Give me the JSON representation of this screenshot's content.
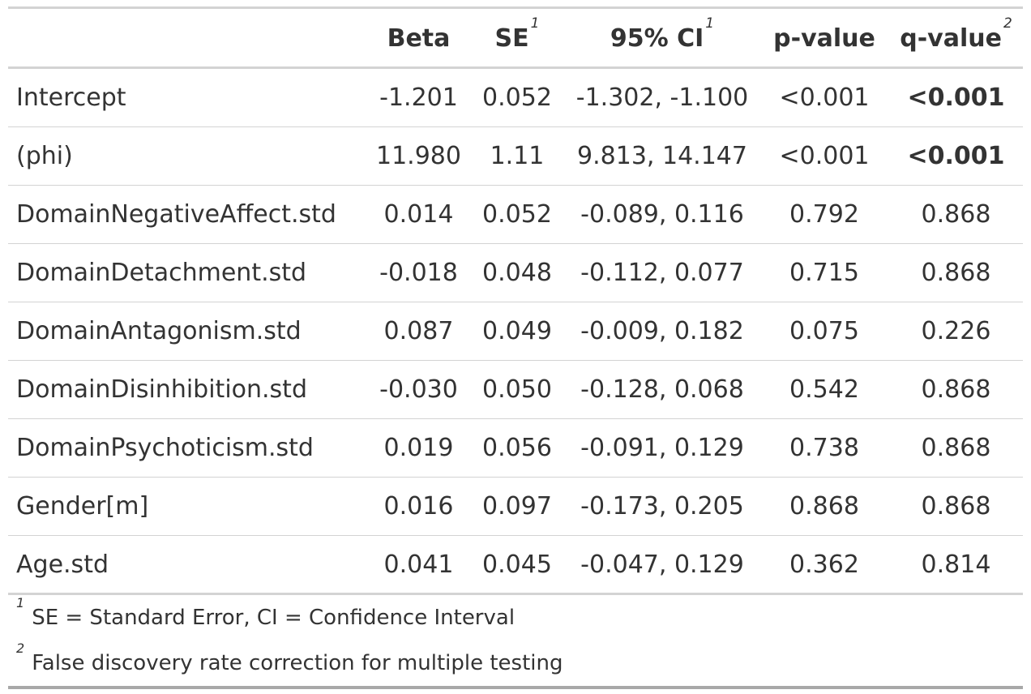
{
  "table": {
    "headers": [
      {
        "label": "",
        "sup": ""
      },
      {
        "label": "Beta",
        "sup": ""
      },
      {
        "label": "SE",
        "sup": "1"
      },
      {
        "label": "95% CI",
        "sup": "1"
      },
      {
        "label": "p-value",
        "sup": ""
      },
      {
        "label": "q-value",
        "sup": "2"
      }
    ],
    "rows": [
      {
        "term": "Intercept",
        "beta": "-1.201",
        "se": "0.052",
        "ci": "-1.302, -1.100",
        "p": "<0.001",
        "q": "<0.001",
        "q_bold": true
      },
      {
        "term": "(phi)",
        "beta": "11.980",
        "se": "1.11",
        "ci": "9.813, 14.147",
        "p": "<0.001",
        "q": "<0.001",
        "q_bold": true
      },
      {
        "term": "DomainNegativeAffect.std",
        "beta": "0.014",
        "se": "0.052",
        "ci": "-0.089, 0.116",
        "p": "0.792",
        "q": "0.868",
        "q_bold": false
      },
      {
        "term": "DomainDetachment.std",
        "beta": "-0.018",
        "se": "0.048",
        "ci": "-0.112, 0.077",
        "p": "0.715",
        "q": "0.868",
        "q_bold": false
      },
      {
        "term": "DomainAntagonism.std",
        "beta": "0.087",
        "se": "0.049",
        "ci": "-0.009, 0.182",
        "p": "0.075",
        "q": "0.226",
        "q_bold": false
      },
      {
        "term": "DomainDisinhibition.std",
        "beta": "-0.030",
        "se": "0.050",
        "ci": "-0.128, 0.068",
        "p": "0.542",
        "q": "0.868",
        "q_bold": false
      },
      {
        "term": "DomainPsychoticism.std",
        "beta": "0.019",
        "se": "0.056",
        "ci": "-0.091, 0.129",
        "p": "0.738",
        "q": "0.868",
        "q_bold": false
      },
      {
        "term": "Gender[m]",
        "beta": "0.016",
        "se": "0.097",
        "ci": "-0.173, 0.205",
        "p": "0.868",
        "q": "0.868",
        "q_bold": false
      },
      {
        "term": "Age.std",
        "beta": "0.041",
        "se": "0.045",
        "ci": "-0.047, 0.129",
        "p": "0.362",
        "q": "0.814",
        "q_bold": false
      }
    ]
  },
  "footnotes": [
    {
      "mark": "1",
      "text": "SE = Standard Error, CI = Confidence Interval"
    },
    {
      "mark": "2",
      "text": "False discovery rate correction for multiple testing"
    }
  ],
  "colors": {
    "text": "#333333",
    "rule": "#d3d3d3",
    "bottom_rule": "#a8a8a8"
  }
}
